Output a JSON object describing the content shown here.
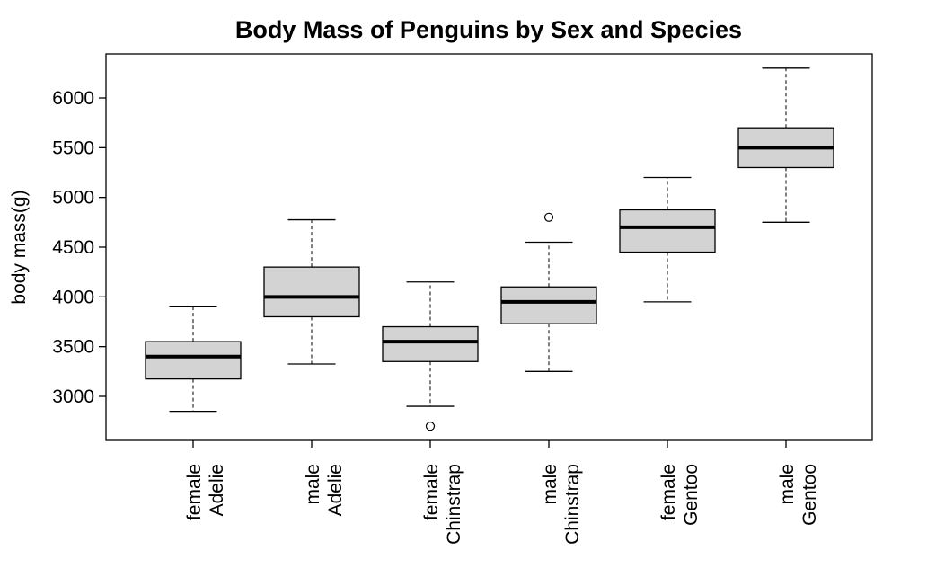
{
  "chart_data": {
    "type": "boxplot",
    "title": "Body Mass of Penguins by Sex and Species",
    "xlabel": "",
    "ylabel": "body mass(g)",
    "ylim": [
      2500,
      6450
    ],
    "yticks": [
      3000,
      3500,
      4000,
      4500,
      5000,
      5500,
      6000
    ],
    "grid": false,
    "legend": "none",
    "box_fill": "#d3d3d3",
    "categories": [
      {
        "line1": "female",
        "line2": "Adelie"
      },
      {
        "line1": "male",
        "line2": "Adelie"
      },
      {
        "line1": "female",
        "line2": "Chinstrap"
      },
      {
        "line1": "male",
        "line2": "Chinstrap"
      },
      {
        "line1": "female",
        "line2": "Gentoo"
      },
      {
        "line1": "male",
        "line2": "Gentoo"
      }
    ],
    "boxes": [
      {
        "whisker_low": 2850,
        "q1": 3175,
        "median": 3400,
        "q3": 3550,
        "whisker_high": 3900,
        "outliers": []
      },
      {
        "whisker_low": 3325,
        "q1": 3800,
        "median": 4000,
        "q3": 4300,
        "whisker_high": 4775,
        "outliers": []
      },
      {
        "whisker_low": 2900,
        "q1": 3350,
        "median": 3550,
        "q3": 3700,
        "whisker_high": 4150,
        "outliers": [
          2700
        ]
      },
      {
        "whisker_low": 3250,
        "q1": 3730,
        "median": 3950,
        "q3": 4100,
        "whisker_high": 4550,
        "outliers": [
          4800
        ]
      },
      {
        "whisker_low": 3950,
        "q1": 4450,
        "median": 4700,
        "q3": 4875,
        "whisker_high": 5200,
        "outliers": []
      },
      {
        "whisker_low": 4750,
        "q1": 5300,
        "median": 5500,
        "q3": 5700,
        "whisker_high": 6300,
        "outliers": []
      }
    ]
  }
}
